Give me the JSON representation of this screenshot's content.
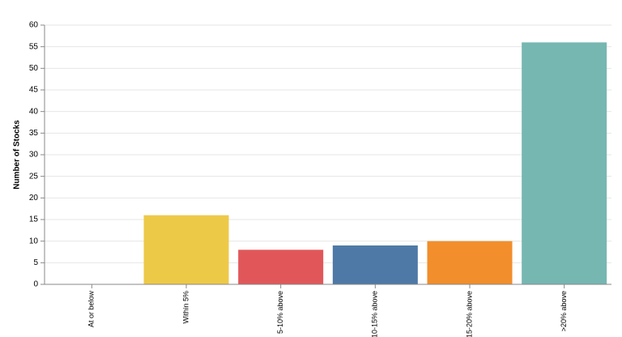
{
  "chart_data": {
    "type": "bar",
    "y_label": "Number of Stocks",
    "categories": [
      "At or below",
      "Within 5%",
      "5-10% above",
      "10-15% above",
      "15-20% above",
      ">20% above"
    ],
    "values": [
      0,
      16,
      8,
      9,
      10,
      56
    ],
    "colors": [
      "#4c78a8",
      "#edc948",
      "#e15759",
      "#4e79a7",
      "#f28e2b",
      "#76b7b2"
    ],
    "ylim": [
      0,
      60
    ],
    "yticks": [
      0,
      5,
      10,
      15,
      20,
      25,
      30,
      35,
      40,
      45,
      50,
      55,
      60
    ],
    "grid": true
  }
}
